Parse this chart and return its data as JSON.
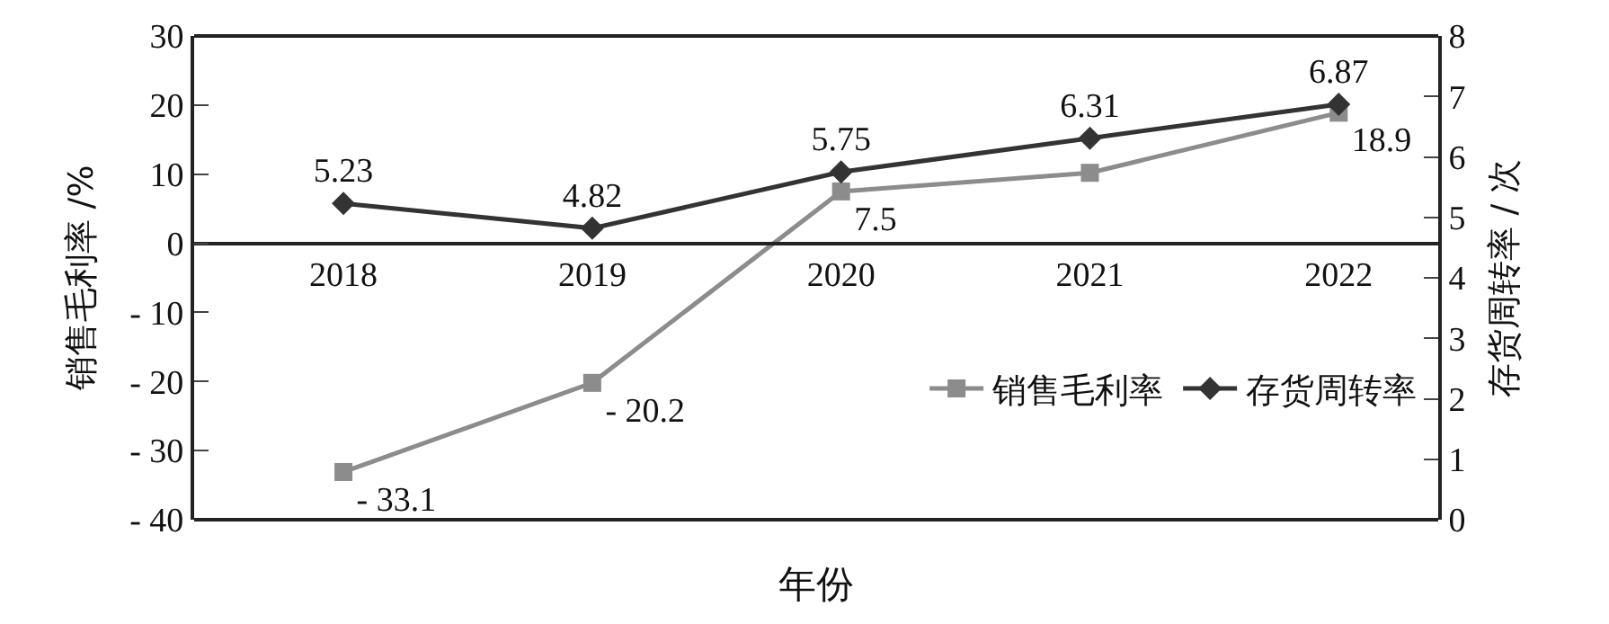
{
  "chart_data": {
    "type": "line",
    "xlabel": "年份",
    "ylabel": "销售毛利率 /%",
    "y2label": "存货周转率 / 次",
    "categories": [
      "2018",
      "2019",
      "2020",
      "2021",
      "2022"
    ],
    "series": [
      {
        "name": "销售毛利率",
        "color": "#8c8c8c",
        "marker": "square",
        "values": [
          -33.1,
          -20.2,
          7.5,
          10.2,
          18.9
        ],
        "value_labels": [
          "- 33.1",
          "- 20.2",
          "7.5",
          null,
          "18.9"
        ]
      },
      {
        "name": "存货周转率",
        "color": "#333333",
        "marker": "diamond",
        "axis": "y2",
        "values": [
          5.23,
          4.82,
          5.75,
          6.31,
          6.87
        ],
        "data_labels": true
      }
    ],
    "ylim": [
      -40,
      30
    ],
    "yticks": [
      {
        "value": -40,
        "label": "- 40"
      },
      {
        "value": -30,
        "label": "- 30"
      },
      {
        "value": -20,
        "label": "- 20"
      },
      {
        "value": -10,
        "label": "- 10"
      },
      0,
      10,
      20,
      30
    ],
    "y2lim": [
      0,
      8
    ],
    "y2ticks": [
      0,
      1,
      2,
      3,
      4,
      5,
      6,
      7,
      8
    ],
    "legend": "bottom right"
  }
}
